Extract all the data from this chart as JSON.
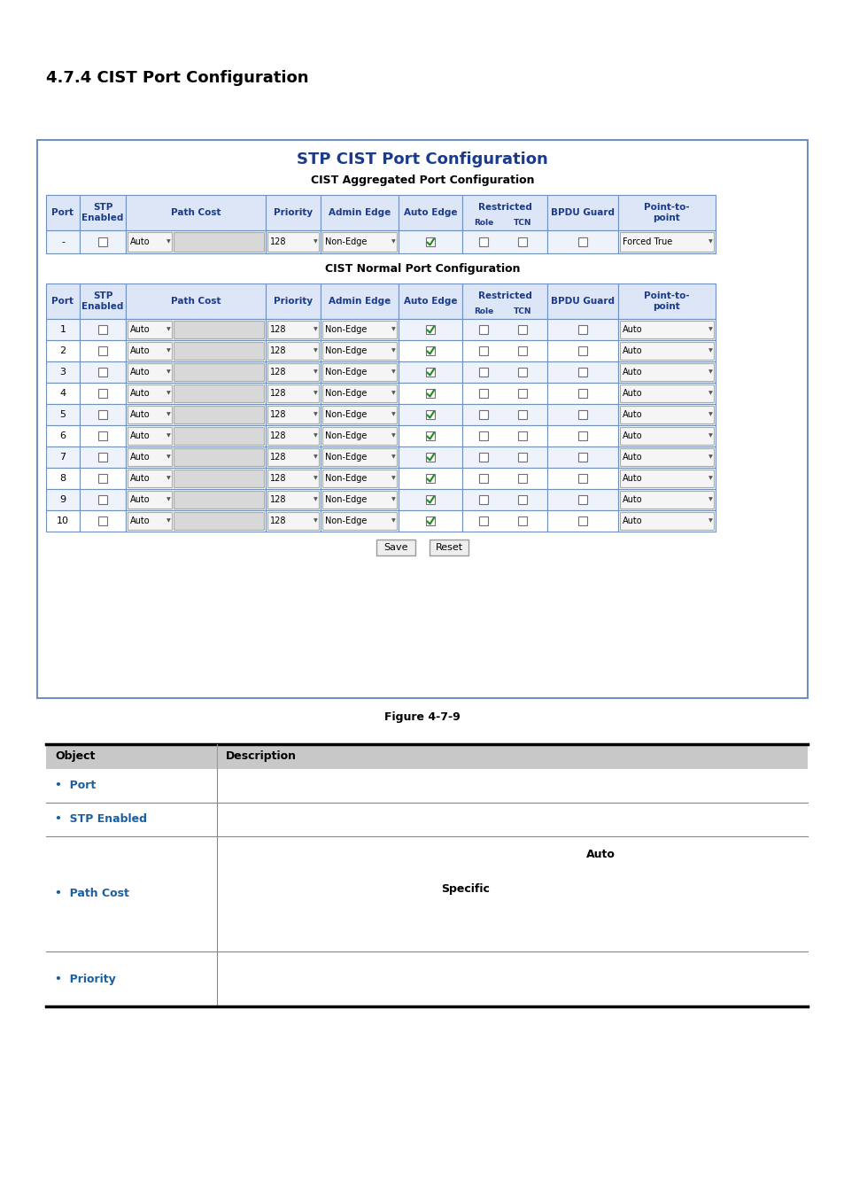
{
  "page_title": "4.7.4 CIST Port Configuration",
  "panel_title": "STP CIST Port Configuration",
  "panel_title_color": "#1a3a8c",
  "section1_title": "CIST Aggregated Port Configuration",
  "section2_title": "CIST Normal Port Configuration",
  "figure_caption": "Figure 4-7-9",
  "bg_color": "#ffffff",
  "panel_bg": "#ffffff",
  "panel_border": "#7090c0",
  "header_bg": "#dce6f7",
  "header_text_color": "#1a3a8c",
  "row_odd_bg": "#eef2fa",
  "row_even_bg": "#ffffff",
  "table_border": "#7090c0",
  "desc_header_bg": "#c8c8c8",
  "desc_obj_color": "#1a5fa0",
  "checkbox_color": "#707070",
  "checked_color": "#228822",
  "dropdown_bg": "#f5f5f5",
  "dropdown_border": "#aaaaaa",
  "button_bg": "#eeeeee",
  "button_border": "#999999",
  "col_ws": [
    38,
    52,
    158,
    62,
    88,
    72,
    96,
    80,
    110
  ],
  "normal_ports": [
    "1",
    "2",
    "3",
    "4",
    "5",
    "6",
    "7",
    "8",
    "9",
    "10"
  ]
}
